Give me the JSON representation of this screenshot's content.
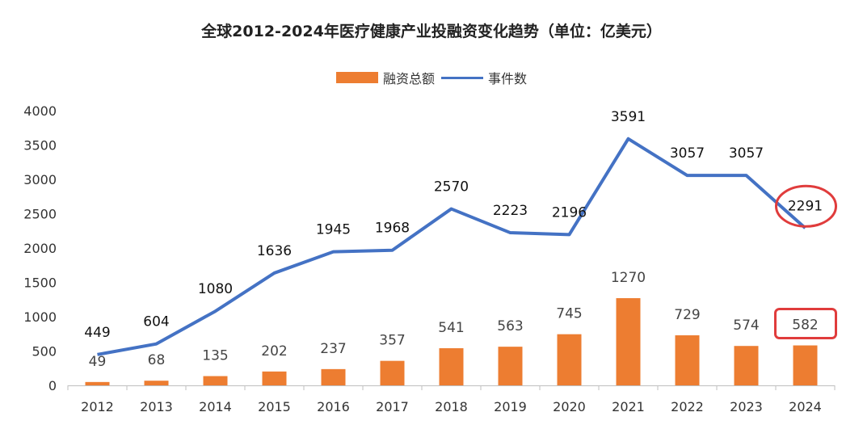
{
  "chart_data": {
    "type": "bar",
    "title": "全球2012-2024年医疗健康产业投融资变化趋势（单位：亿美元）",
    "categories": [
      "2012",
      "2013",
      "2014",
      "2015",
      "2016",
      "2017",
      "2018",
      "2019",
      "2020",
      "2021",
      "2022",
      "2023",
      "2024"
    ],
    "series": [
      {
        "name": "融资总额",
        "type": "bar",
        "color": "#ED7D31",
        "values": [
          49,
          68,
          135,
          202,
          237,
          357,
          541,
          563,
          745,
          1270,
          729,
          574,
          582
        ]
      },
      {
        "name": "事件数",
        "type": "line",
        "color": "#4472C4",
        "values": [
          449,
          604,
          1080,
          1636,
          1945,
          1968,
          2570,
          2223,
          2196,
          3591,
          3057,
          3057,
          2291
        ]
      }
    ],
    "ylim": [
      0,
      4000
    ],
    "yticks": [
      "0",
      "500",
      "1000",
      "1500",
      "2000",
      "2500",
      "3000",
      "3500",
      "4000"
    ],
    "legend_position": "top",
    "grid": false,
    "annotations": {
      "highlight_color": "#E03C3C",
      "highlighted": [
        "2024 事件数 2291",
        "2024 融资总额 582"
      ]
    }
  }
}
